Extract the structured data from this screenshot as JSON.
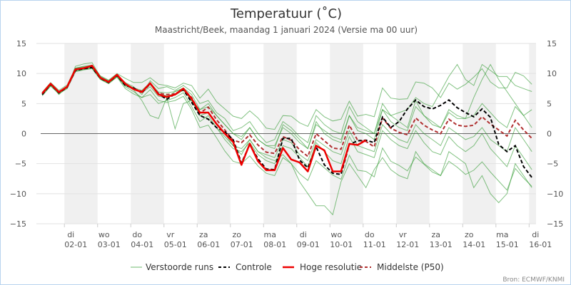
{
  "chart_data": {
    "type": "line",
    "title": "Temperatuur (˚C)",
    "subtitle": "Maastricht/Beek, maandag 1 januari 2024 (Versie ma 00 uur)",
    "credit": "Bron: ECMWF/KNMI",
    "ylim": [
      -15,
      15
    ],
    "yticks": [
      "15",
      "10",
      "5",
      "0",
      "−5",
      "−10",
      "−15"
    ],
    "ytick_values": [
      15,
      10,
      5,
      0,
      -5,
      -10,
      -15
    ],
    "xlim": [
      "2024-01-01T03:45",
      "2024-01-16T05:00"
    ],
    "x_start": "2024-01-01T08:00",
    "x_step_hours": 6,
    "xticks": [
      {
        "day": "di",
        "date": "02-01"
      },
      {
        "day": "wo",
        "date": "03-01"
      },
      {
        "day": "do",
        "date": "04-01"
      },
      {
        "day": "vr",
        "date": "05-01"
      },
      {
        "day": "za",
        "date": "06-01"
      },
      {
        "day": "zo",
        "date": "07-01"
      },
      {
        "day": "ma",
        "date": "08-01"
      },
      {
        "day": "di",
        "date": "09-01"
      },
      {
        "day": "wo",
        "date": "10-01"
      },
      {
        "day": "do",
        "date": "11-01"
      },
      {
        "day": "vr",
        "date": "12-01"
      },
      {
        "day": "za",
        "date": "13-01"
      },
      {
        "day": "zo",
        "date": "14-01"
      },
      {
        "day": "ma",
        "date": "15-01"
      },
      {
        "day": "di",
        "date": "16-01"
      }
    ],
    "grid": true,
    "shaded_alternate_days": true,
    "legend_position": "bottom",
    "legend": [
      {
        "label": "Verstoorde runs",
        "color": "#2e9a2e",
        "style": "thin"
      },
      {
        "label": "Controle",
        "color": "#000000",
        "style": "dashed"
      },
      {
        "label": "Hoge resolutie",
        "color": "#ee0000",
        "style": "solid"
      },
      {
        "label": "Middelste (P50)",
        "color": "#b03030",
        "style": "dashed"
      }
    ],
    "series": {
      "ensemble": [
        [
          6.9,
          8.5,
          7.2,
          8.1,
          10.9,
          11.2,
          11.4,
          9.6,
          8.9,
          10.0,
          9.2,
          8.5,
          8.5,
          9.3,
          8.2,
          8.0,
          7.6,
          8.4,
          8.0,
          5.9,
          7.4,
          5.3,
          4.1,
          2.9,
          2.5,
          3.8,
          2.6,
          0.9,
          0.7,
          3.0,
          2.9,
          1.8,
          1.2,
          4.0,
          2.8,
          2.1,
          2.4,
          5.4,
          2.9,
          3.2,
          2.8,
          7.6,
          5.9,
          5.7,
          5.8,
          8.6,
          8.4,
          7.6,
          6.0,
          8.4,
          7.4,
          8.2,
          9.4,
          10.8,
          8.6,
          7.6,
          7.6,
          10.2,
          9.6,
          8.2
        ],
        [
          6.3,
          7.9,
          6.6,
          7.5,
          10.3,
          10.6,
          10.8,
          9.0,
          8.3,
          9.4,
          7.5,
          6.6,
          6.0,
          7.3,
          5.5,
          5.2,
          5.5,
          6.2,
          4.0,
          1.0,
          1.4,
          -0.7,
          -2.9,
          -4.6,
          -5.0,
          -3.7,
          -5.4,
          -6.6,
          -7.0,
          -4.0,
          -5.0,
          -6.7,
          -7.8,
          -4.5,
          -5.7,
          -6.9,
          -7.6,
          -3.6,
          -6.1,
          -6.3,
          -7.2,
          -2.4,
          -4.6,
          -5.3,
          -6.2,
          -3.9,
          -5.1,
          -6.4,
          -7.0,
          -4.6,
          -5.6,
          -6.8,
          -6.1,
          -4.7,
          -6.4,
          -7.9,
          -9.4,
          -5.8,
          -7.4,
          -8.8
        ],
        [
          6.5,
          8.0,
          7.0,
          7.6,
          11.2,
          11.6,
          11.8,
          9.5,
          8.8,
          9.8,
          8.5,
          7.8,
          6.5,
          8.8,
          7.5,
          7.8,
          7.2,
          8.0,
          7.0,
          5.0,
          5.5,
          3.5,
          2.5,
          0.5,
          1.0,
          2.0,
          0.0,
          -1.5,
          -1.0,
          2.0,
          1.0,
          -0.5,
          -1.5,
          3.0,
          1.5,
          0.5,
          0.0,
          4.5,
          2.0,
          1.0,
          0.0,
          5.0,
          3.0,
          2.0,
          1.0,
          5.5,
          3.0,
          2.0,
          1.0,
          4.0,
          3.0,
          2.5,
          6.0,
          9.0,
          11.5,
          9.0,
          7.0,
          5.0,
          3.0,
          4.0
        ],
        [
          6.7,
          8.3,
          6.5,
          7.9,
          10.4,
          10.7,
          11.0,
          9.1,
          8.4,
          9.5,
          7.8,
          7.0,
          6.0,
          6.5,
          5.0,
          5.5,
          6.0,
          6.8,
          4.5,
          2.0,
          3.0,
          1.0,
          -1.0,
          -2.5,
          -3.0,
          -1.5,
          -3.5,
          -4.5,
          -5.0,
          -2.0,
          -2.5,
          -4.0,
          -5.5,
          -1.5,
          -3.0,
          -4.5,
          -5.0,
          -0.5,
          -3.0,
          -3.5,
          -4.0,
          0.5,
          -1.0,
          -2.0,
          -2.5,
          0.5,
          -1.5,
          -3.0,
          -3.5,
          -0.5,
          -2.0,
          -3.0,
          -2.0,
          0.0,
          -2.5,
          -4.0,
          -5.5,
          -2.0,
          -4.0,
          -6.0
        ],
        [
          6.6,
          8.1,
          6.8,
          7.7,
          10.8,
          11.0,
          11.2,
          9.4,
          8.7,
          9.6,
          8.0,
          7.3,
          5.5,
          3.0,
          2.5,
          6.0,
          7.0,
          7.5,
          5.5,
          4.0,
          4.5,
          3.0,
          1.5,
          0.0,
          -1.0,
          1.0,
          -1.0,
          -2.0,
          -2.5,
          1.5,
          0.5,
          -1.0,
          -2.5,
          2.0,
          0.0,
          -1.0,
          -1.5,
          3.0,
          0.5,
          0.0,
          -1.0,
          4.0,
          2.0,
          1.0,
          0.5,
          4.5,
          3.0,
          1.5,
          1.0,
          3.5,
          2.5,
          2.5,
          3.0,
          5.0,
          3.5,
          2.0,
          1.0,
          4.5,
          3.0,
          1.0
        ],
        [
          6.5,
          8.2,
          6.8,
          7.8,
          10.7,
          10.8,
          11.0,
          9.2,
          8.5,
          9.6,
          8.1,
          7.4,
          6.8,
          7.8,
          6.2,
          6.0,
          0.8,
          5.0,
          5.5,
          3.0,
          3.5,
          1.5,
          0.0,
          -2.0,
          -2.5,
          -1.0,
          -3.0,
          -4.0,
          -4.5,
          -3.5,
          -5.0,
          -8.0,
          -10.0,
          -12.0,
          -12.0,
          -13.5,
          -8.0,
          -5.0,
          -7.0,
          -9.0,
          -6.0,
          -4.0,
          -6.0,
          -7.0,
          -7.5,
          -3.0,
          -5.0,
          -6.0,
          -7.0,
          -3.0,
          -4.0,
          -5.0,
          -9.0,
          -7.0,
          -10.0,
          -11.5,
          -10.0,
          -5.0,
          -7.0,
          -9.0
        ],
        [
          6.7,
          8.3,
          7.0,
          7.9,
          10.9,
          11.1,
          11.3,
          9.4,
          8.7,
          9.8,
          8.3,
          7.6,
          7.2,
          8.5,
          6.9,
          6.8,
          7.0,
          7.6,
          6.5,
          4.0,
          5.0,
          3.0,
          1.5,
          0.0,
          -0.5,
          1.0,
          -1.0,
          -2.0,
          -2.0,
          1.0,
          0.0,
          -1.5,
          -2.5,
          1.5,
          0.5,
          -0.5,
          -1.0,
          3.0,
          1.0,
          0.5,
          0.0,
          4.0,
          3.0,
          3.5,
          4.0,
          6.0,
          5.0,
          4.5,
          7.0,
          9.5,
          11.5,
          9.0,
          8.0,
          11.5,
          10.5,
          9.5,
          9.5,
          8.0,
          7.5,
          7.0
        ],
        [
          6.4,
          8.0,
          6.7,
          7.6,
          10.5,
          10.7,
          10.9,
          9.1,
          8.4,
          9.5,
          8.0,
          7.4,
          6.9,
          8.2,
          6.6,
          6.3,
          6.4,
          7.2,
          5.5,
          3.0,
          2.5,
          1.0,
          -0.5,
          -2.0,
          -3.5,
          -1.0,
          -3.0,
          -3.5,
          -4.0,
          -1.0,
          -1.5,
          -3.5,
          -4.5,
          -1.0,
          -2.0,
          -3.0,
          -3.5,
          0.5,
          -2.0,
          -2.5,
          -3.0,
          1.5,
          0.0,
          -1.0,
          -1.5,
          1.5,
          0.0,
          -1.0,
          -2.0,
          1.0,
          0.0,
          -1.0,
          -0.5,
          1.0,
          -1.0,
          -2.0,
          -3.0,
          1.0,
          -1.0,
          -3.0
        ]
      ],
      "controle": [
        6.5,
        8.2,
        6.8,
        7.7,
        10.5,
        10.8,
        11.0,
        9.2,
        8.5,
        9.7,
        8.0,
        7.6,
        6.8,
        8.3,
        6.6,
        5.7,
        6.6,
        7.3,
        5.2,
        3.0,
        2.4,
        1.0,
        0.3,
        -1.0,
        -4.9,
        -1.8,
        -4.2,
        -5.9,
        -6.0,
        -0.8,
        -0.8,
        -4.4,
        -5.7,
        -2.2,
        -5.2,
        -6.6,
        -6.8,
        -1.8,
        -1.2,
        -1.1,
        -1.5,
        2.75,
        1.0,
        2.0,
        4.1,
        5.6,
        4.5,
        4.1,
        4.7,
        5.6,
        4.3,
        3.5,
        2.8,
        4.1,
        2.7,
        -1.8,
        -3.0,
        -2.0,
        -5.5,
        -7.3
      ],
      "hoge_resolutie": [
        6.7,
        8.3,
        6.9,
        7.8,
        10.7,
        10.9,
        11.3,
        9.3,
        8.6,
        9.8,
        8.3,
        7.4,
        6.9,
        8.4,
        6.5,
        6.1,
        6.5,
        7.5,
        5.8,
        3.5,
        3.5,
        1.6,
        0.0,
        -1.4,
        -5.2,
        -1.7,
        -4.6,
        -6.1,
        -6.1,
        -2.4,
        -4.3,
        -4.8,
        -6.3,
        -2.0,
        -2.8,
        -6.3,
        -6.3,
        -1.7,
        -1.9,
        -1.1
      ],
      "p50": [
        6.6,
        8.2,
        6.9,
        7.8,
        10.6,
        10.9,
        11.1,
        9.3,
        8.6,
        9.7,
        8.2,
        7.5,
        7.0,
        8.3,
        6.7,
        6.5,
        6.6,
        7.4,
        6.0,
        3.4,
        4.4,
        2.3,
        0.6,
        -1.1,
        -1.5,
        -0.2,
        -1.9,
        -3.1,
        -3.3,
        -0.5,
        -1.1,
        -2.7,
        -3.8,
        0.0,
        -1.2,
        -2.4,
        -2.6,
        1.4,
        -1.1,
        -1.3,
        -2.2,
        2.6,
        0.9,
        0.2,
        -0.2,
        2.6,
        1.4,
        0.6,
        0.0,
        2.4,
        1.4,
        1.2,
        1.4,
        2.8,
        1.6,
        0.6,
        -0.4,
        2.2,
        0.6,
        -0.8
      ]
    }
  }
}
